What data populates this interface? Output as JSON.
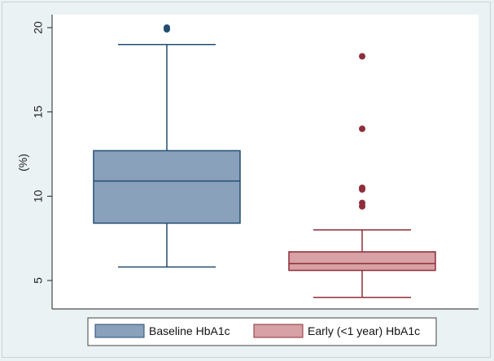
{
  "chart_data": {
    "type": "box",
    "ylabel": "(%)",
    "ylim": [
      4,
      20.5
    ],
    "yticks": [
      5,
      10,
      15,
      20
    ],
    "grid": false,
    "legend_position": "bottom",
    "series": [
      {
        "name": "Baseline HbA1c",
        "color": "#8aa1bb",
        "edge_color": "#234d70",
        "whisker_low": 5.8,
        "q1": 8.4,
        "median": 10.9,
        "q3": 12.7,
        "whisker_high": 19.0,
        "outliers": [
          19.9,
          20.0
        ]
      },
      {
        "name": "Early (<1 year) HbA1c",
        "color": "#d7a1a5",
        "edge_color": "#8e2e3a",
        "whisker_low": 4.0,
        "q1": 5.6,
        "median": 6.0,
        "q3": 6.7,
        "whisker_high": 8.0,
        "outliers": [
          9.4,
          9.6,
          10.4,
          10.5,
          14.0,
          18.3
        ]
      }
    ]
  }
}
